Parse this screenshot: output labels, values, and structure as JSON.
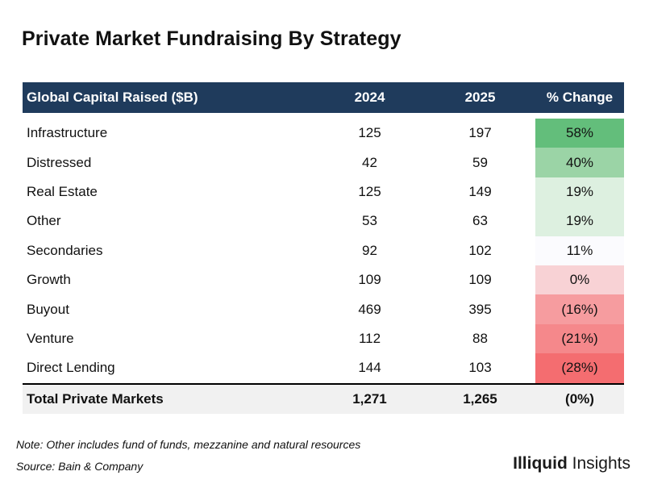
{
  "title": "Private Market Fundraising By Strategy",
  "chart_data": {
    "type": "table",
    "columns": [
      "Global Capital Raised ($B)",
      "2024",
      "2025",
      "% Change"
    ],
    "rows": [
      {
        "name": "Infrastructure",
        "y2024": "125",
        "y2025": "197",
        "change": "58%",
        "change_value": 58
      },
      {
        "name": "Distressed",
        "y2024": "42",
        "y2025": "59",
        "change": "40%",
        "change_value": 40
      },
      {
        "name": "Real Estate",
        "y2024": "125",
        "y2025": "149",
        "change": "19%",
        "change_value": 19
      },
      {
        "name": "Other",
        "y2024": "53",
        "y2025": "63",
        "change": "19%",
        "change_value": 19
      },
      {
        "name": "Secondaries",
        "y2024": "92",
        "y2025": "102",
        "change": "11%",
        "change_value": 11
      },
      {
        "name": "Growth",
        "y2024": "109",
        "y2025": "109",
        "change": "0%",
        "change_value": 0
      },
      {
        "name": "Buyout",
        "y2024": "469",
        "y2025": "395",
        "change": "(16%)",
        "change_value": -16
      },
      {
        "name": "Venture",
        "y2024": "112",
        "y2025": "88",
        "change": "(21%)",
        "change_value": -21
      },
      {
        "name": "Direct Lending",
        "y2024": "144",
        "y2025": "103",
        "change": "(28%)",
        "change_value": -28
      }
    ],
    "total": {
      "name": "Total Private Markets",
      "y2024": "1,271",
      "y2025": "1,265",
      "change": "(0%)"
    }
  },
  "change_colors": [
    "#63be7b",
    "#9bd4a6",
    "#ddf0e0",
    "#ddf0e0",
    "#fbfbfe",
    "#f8d2d5",
    "#f69c9f",
    "#f5888b",
    "#f46d70"
  ],
  "colors": {
    "header_bg": "#1f3b5c",
    "total_bg": "#f1f1f1"
  },
  "note": "Note: Other includes fund of funds, mezzanine and natural resources",
  "source": "Source: Bain & Company",
  "brand": {
    "bold": "Illiquid",
    "regular": " Insights"
  }
}
